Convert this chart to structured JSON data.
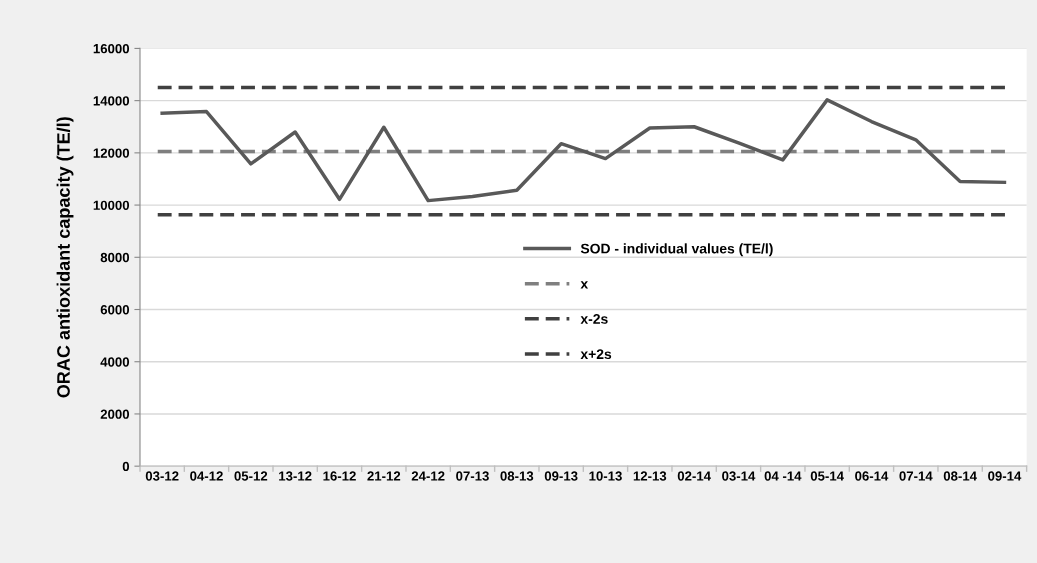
{
  "chart_data": {
    "type": "line",
    "ylabel": "ORAC antioxidant capacity (TE/l)",
    "categories": [
      "03-12",
      "04-12",
      "05-12",
      "13-12",
      "16-12",
      "21-12",
      "24-12",
      "07-13",
      "08-13",
      "09-13",
      "10-13",
      "12-13",
      "02-14",
      "03-14",
      "04 -14",
      "05-14",
      "06-14",
      "07-14",
      "08-14",
      "09-14"
    ],
    "series": [
      {
        "name": "SOD - individual values (TE/l)",
        "color": "#595959",
        "values": [
          13520,
          13580,
          11580,
          12800,
          10220,
          12980,
          10170,
          10330,
          10570,
          12350,
          11780,
          12950,
          13000,
          12380,
          11730,
          14030,
          13200,
          12500,
          10900,
          10870
        ]
      }
    ],
    "ref_lines": [
      {
        "axis": "y",
        "value": 12050,
        "label": "x",
        "color": "#7f7f7f",
        "line_style": "dashed"
      },
      {
        "axis": "y",
        "value": 9630,
        "label": "x-2s",
        "color": "#404040",
        "line_style": "dashed"
      },
      {
        "axis": "y",
        "value": 14500,
        "label": "x+2s",
        "color": "#404040",
        "line_style": "dashed"
      }
    ],
    "ylim": [
      0,
      16000
    ],
    "yticks": [
      0,
      2000,
      4000,
      6000,
      8000,
      10000,
      12000,
      14000,
      16000
    ],
    "grid": "y",
    "legend": "center",
    "marker": "none",
    "line_style": "solid"
  }
}
